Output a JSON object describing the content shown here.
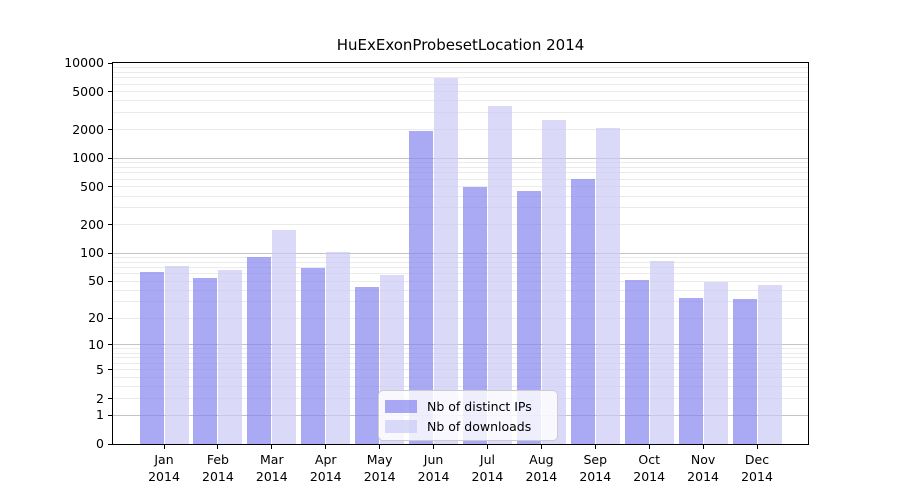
{
  "title": "HuExExonProbesetLocation 2014",
  "chart_data": {
    "type": "bar",
    "title": "HuExExonProbesetLocation 2014",
    "categories": [
      "Jan 2014",
      "Feb 2014",
      "Mar 2014",
      "Apr 2014",
      "May 2014",
      "Jun 2014",
      "Jul 2014",
      "Aug 2014",
      "Sep 2014",
      "Oct 2014",
      "Nov 2014",
      "Dec 2014"
    ],
    "series": [
      {
        "name": "Nb of distinct IPs",
        "color": "rgba(132,132,240,0.7)",
        "values": [
          63,
          55,
          91,
          69,
          44,
          1930,
          500,
          458,
          600,
          52,
          33,
          32
        ]
      },
      {
        "name": "Nb of downloads",
        "color": "rgba(202,202,245,0.7)",
        "values": [
          73,
          66,
          175,
          104,
          59,
          7000,
          3500,
          2500,
          2060,
          83,
          49,
          46
        ]
      }
    ],
    "xlabel": "",
    "ylabel": "",
    "yscale": "log1p",
    "ylim": [
      0,
      10000
    ],
    "yticks": [
      0,
      1,
      2,
      5,
      10,
      20,
      50,
      100,
      200,
      500,
      1000,
      2000,
      5000,
      10000
    ],
    "grid": "horizontal, log minor + major decade lines",
    "legend_position": "lower center"
  },
  "colors": {
    "frame": "#000000",
    "major_grid": "#c4c4c4",
    "minor_grid": "#ebebeb",
    "legend_border": "#cccccc",
    "background": "#ffffff"
  }
}
